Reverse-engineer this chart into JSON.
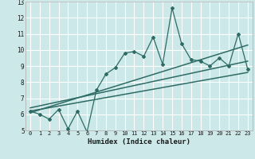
{
  "xlabel": "Humidex (Indice chaleur)",
  "ylabel": "",
  "bg_color": "#cce8e8",
  "grid_color": "#ffffff",
  "line_color": "#2e6b65",
  "xlim": [
    -0.5,
    23.5
  ],
  "ylim": [
    5,
    13
  ],
  "x_data": [
    0,
    1,
    2,
    3,
    4,
    5,
    6,
    7,
    8,
    9,
    10,
    11,
    12,
    13,
    14,
    15,
    16,
    17,
    18,
    19,
    20,
    21,
    22,
    23
  ],
  "y_data": [
    6.2,
    6.0,
    5.7,
    6.3,
    5.1,
    6.2,
    4.9,
    7.5,
    8.5,
    8.9,
    9.8,
    9.9,
    9.6,
    10.8,
    9.1,
    12.6,
    10.4,
    9.4,
    9.3,
    9.0,
    9.5,
    9.0,
    11.0,
    8.8
  ],
  "trend1_x": [
    0,
    23
  ],
  "trend1_y": [
    6.1,
    10.3
  ],
  "trend2_x": [
    0,
    23
  ],
  "trend2_y": [
    6.4,
    9.3
  ],
  "trend3_x": [
    0,
    23
  ],
  "trend3_y": [
    6.2,
    8.6
  ]
}
